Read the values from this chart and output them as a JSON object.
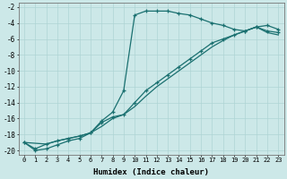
{
  "xlabel": "Humidex (Indice chaleur)",
  "xlim": [
    -0.5,
    23.5
  ],
  "ylim": [
    -20.5,
    -1.5
  ],
  "yticks": [
    -20,
    -18,
    -16,
    -14,
    -12,
    -10,
    -8,
    -6,
    -4,
    -2
  ],
  "xticks": [
    0,
    1,
    2,
    3,
    4,
    5,
    6,
    7,
    8,
    9,
    10,
    11,
    12,
    13,
    14,
    15,
    16,
    17,
    18,
    19,
    20,
    21,
    22,
    23
  ],
  "bg_color": "#cce8e8",
  "grid_color": "#aed4d4",
  "line_color": "#1a7070",
  "line1_x": [
    0,
    1,
    2,
    3,
    4,
    5,
    6,
    7,
    8,
    9,
    10,
    11,
    12,
    13,
    14,
    15,
    16,
    17,
    18,
    19,
    20,
    21,
    22,
    23
  ],
  "line1_y": [
    -19,
    -20,
    -19.8,
    -19.3,
    -18.8,
    -18.5,
    -17.8,
    -16.3,
    -15.2,
    -12.5,
    -3.0,
    -2.5,
    -2.5,
    -2.5,
    -2.8,
    -3.0,
    -3.5,
    -4.0,
    -4.3,
    -4.8,
    -5.0,
    -4.5,
    -4.3,
    -4.8
  ],
  "line2_x": [
    0,
    1,
    2,
    3,
    4,
    5,
    6,
    7,
    8,
    9,
    10,
    11,
    12,
    13,
    14,
    15,
    16,
    17,
    18,
    19,
    20,
    21,
    22,
    23
  ],
  "line2_y": [
    -19,
    -19.8,
    -19.2,
    -18.8,
    -18.5,
    -18.2,
    -17.8,
    -16.5,
    -15.8,
    -15.5,
    -14.0,
    -12.5,
    -11.5,
    -10.5,
    -9.5,
    -8.5,
    -7.5,
    -6.5,
    -6.0,
    -5.5,
    -5.0,
    -4.5,
    -5.0,
    -5.2
  ],
  "line3_x": [
    0,
    2,
    3,
    4,
    5,
    6,
    7,
    8,
    9,
    10,
    11,
    12,
    13,
    14,
    15,
    16,
    17,
    18,
    19,
    20,
    21,
    22,
    23
  ],
  "line3_y": [
    -19,
    -19.2,
    -18.8,
    -18.5,
    -18.2,
    -17.8,
    -17.0,
    -16.0,
    -15.5,
    -14.5,
    -13.2,
    -12.0,
    -11.0,
    -10.0,
    -9.0,
    -8.0,
    -7.0,
    -6.2,
    -5.5,
    -5.0,
    -4.5,
    -5.2,
    -5.5
  ]
}
